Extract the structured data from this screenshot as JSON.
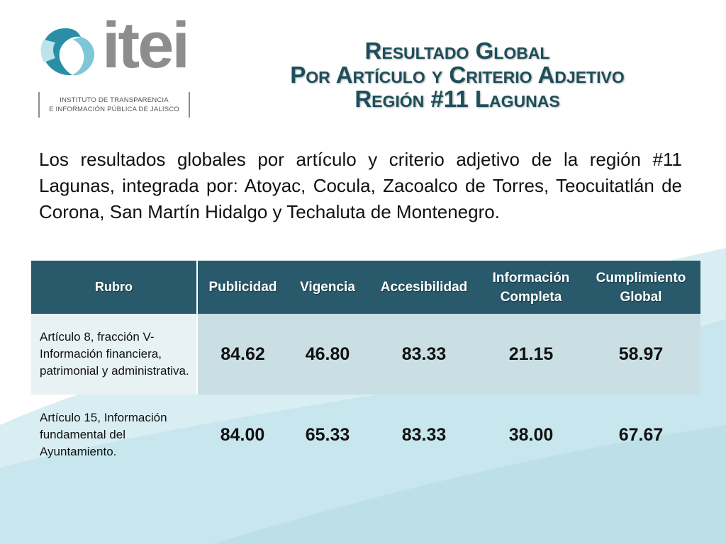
{
  "header": {
    "logo_text": "itei",
    "logo_subtitle_line1": "INSTITUTO DE TRANSPARENCIA",
    "logo_subtitle_line2": "E INFORMACIÓN PÚBLICA DE JALISCO",
    "title_line1": "Resultado Global",
    "title_line2": "Por Artículo y Criterio Adjetivo",
    "title_line3": "Región #11 Lagunas"
  },
  "intro": "Los resultados globales por artículo y criterio adjetivo de la región #11 Lagunas, integrada por: Atoyac, Cocula, Zacoalco de Torres, Teocuitatlán de Corona, San Martín Hidalgo y Techaluta de Montenegro.",
  "table": {
    "columns": [
      "Rubro",
      "Publicidad",
      "Vigencia",
      "Accesibilidad",
      "Información Completa",
      "Cumplimiento Global"
    ],
    "rows": [
      {
        "label": "Artículo 8, fracción V- Información financiera, patrimonial y administrativa.",
        "values": [
          "84.62",
          "46.80",
          "83.33",
          "21.15",
          "58.97"
        ]
      },
      {
        "label": "Artículo 15, Información fundamental del Ayuntamiento.",
        "values": [
          "84.00",
          "65.33",
          "83.33",
          "38.00",
          "67.67"
        ]
      }
    ]
  },
  "colors": {
    "header_bg": "#285a6b",
    "title": "#1c4f5a",
    "row_highlight": "#c9dfe4",
    "wave": "#c5e3ea"
  }
}
